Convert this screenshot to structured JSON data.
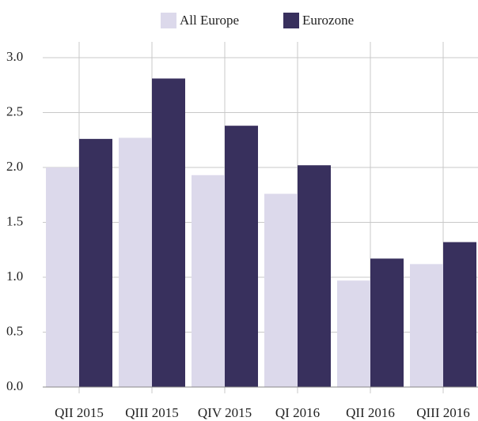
{
  "chart_data": {
    "type": "bar",
    "categories": [
      "QII 2015",
      "QIII 2015",
      "QIV 2015",
      "QI 2016",
      "QII 2016",
      "QIII 2016"
    ],
    "series": [
      {
        "name": "All Europe",
        "color": "#dcd9eb",
        "values": [
          2.0,
          2.27,
          1.93,
          1.76,
          0.97,
          1.12
        ]
      },
      {
        "name": "Eurozone",
        "color": "#38305d",
        "values": [
          2.26,
          2.81,
          2.38,
          2.02,
          1.17,
          1.32
        ]
      }
    ],
    "ylim": [
      0,
      3.0
    ],
    "yticks": [
      {
        "value": 0,
        "label": "0.0"
      },
      0.5,
      {
        "value": 1,
        "label": "1.0"
      },
      1.5,
      {
        "value": 2,
        "label": "2.0"
      },
      2.5,
      {
        "value": 3,
        "label": "3.0"
      }
    ],
    "grid": true
  }
}
